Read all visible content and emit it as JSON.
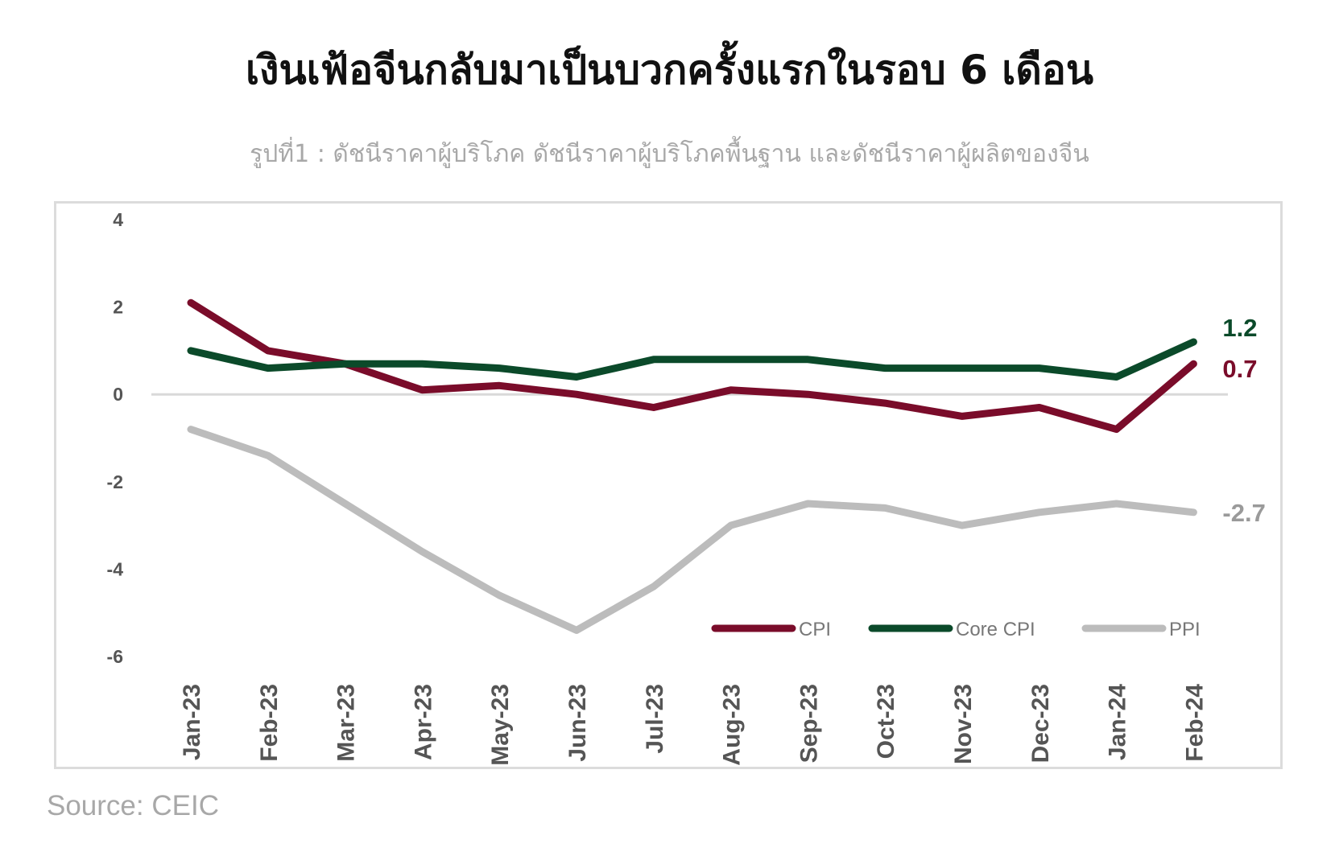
{
  "title": "เงินเฟ้อจีนกลับมาเป็นบวกครั้งแรกในรอบ 6 เดือน",
  "subtitle": "รูปที่1 : ดัชนีราคาผู้บริโภค ดัชนีราคาผู้บริโภคพื้นฐาน และดัชนีราคาผู้ผลิตของจีน",
  "source": "Source:  CEIC",
  "chart_data": {
    "type": "line",
    "categories": [
      "Jan-23",
      "Feb-23",
      "Mar-23",
      "Apr-23",
      "May-23",
      "Jun-23",
      "Jul-23",
      "Aug-23",
      "Sep-23",
      "Oct-23",
      "Nov-23",
      "Dec-23",
      "Jan-24",
      "Feb-24"
    ],
    "yticks": [
      "4",
      "2",
      "0",
      "-2",
      "-4",
      "-6"
    ],
    "ylim": [
      -6,
      4
    ],
    "grid": false,
    "legend_position": "bottom-right",
    "series": [
      {
        "name": "CPI",
        "color": "#7a0c2a",
        "end_label": "0.7",
        "values": [
          2.1,
          1.0,
          0.7,
          0.1,
          0.2,
          0.0,
          -0.3,
          0.1,
          0.0,
          -0.2,
          -0.5,
          -0.3,
          -0.8,
          0.7
        ]
      },
      {
        "name": "Core CPI",
        "color": "#0b4a2a",
        "end_label": "1.2",
        "values": [
          1.0,
          0.6,
          0.7,
          0.7,
          0.6,
          0.4,
          0.8,
          0.8,
          0.8,
          0.6,
          0.6,
          0.6,
          0.4,
          1.2
        ]
      },
      {
        "name": "PPI",
        "color": "#bcbcbc",
        "end_label": "-2.7",
        "values": [
          -0.8,
          -1.4,
          -2.5,
          -3.6,
          -4.6,
          -5.4,
          -4.4,
          -3.0,
          -2.5,
          -2.6,
          -3.0,
          -2.7,
          -2.5,
          -2.7
        ]
      }
    ]
  }
}
